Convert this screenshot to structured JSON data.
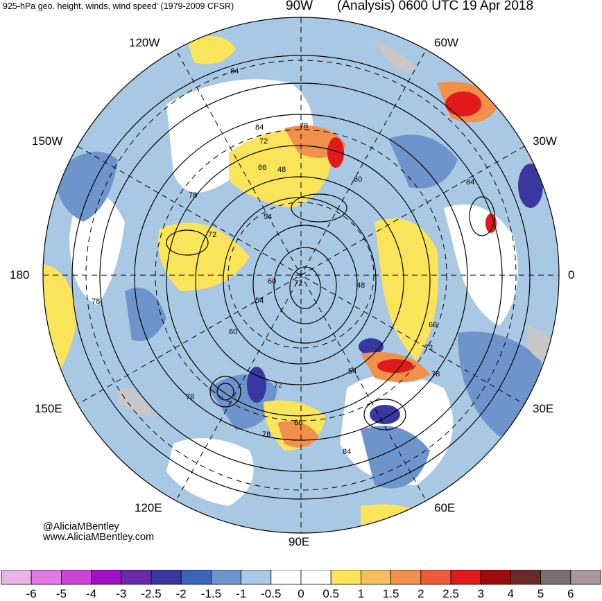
{
  "header": {
    "left_title": "925-hPa geo. height, winds, wind speed' (1979-2009 CFSR)",
    "top_lon": "90W",
    "right_title": "(Analysis) 0600 UTC 19 Apr 2018"
  },
  "longitude_labels": {
    "lon_120w": "120W",
    "lon_60w": "60W",
    "lon_150w": "150W",
    "lon_30w": "30W",
    "lon_180": "180",
    "lon_0": "0",
    "lon_150e": "150E",
    "lon_30e": "30E",
    "lon_120e": "120E",
    "lon_60e": "60E",
    "lon_90e": "90E"
  },
  "contour_labels": [
    "84",
    "84",
    "78",
    "72",
    "66",
    "48",
    "60",
    "54",
    "78",
    "72",
    "60",
    "72",
    "54",
    "60",
    "48",
    "84",
    "66",
    "72",
    "78",
    "54",
    "72",
    "78",
    "66",
    "78",
    "84",
    "78"
  ],
  "credits": {
    "handle": "@AliciaMBentley",
    "website": "www.AliciaMBentley.com"
  },
  "colorbar": {
    "ticks": [
      "-6",
      "-5",
      "-4",
      "-3",
      "-2.5",
      "-2",
      "-1.5",
      "-1",
      "-0.5",
      "0",
      "0.5",
      "1",
      "1.5",
      "2",
      "2.5",
      "3",
      "4",
      "5",
      "6"
    ],
    "colors": [
      "#e8b4e8",
      "#e07ae0",
      "#cc44d6",
      "#a010c8",
      "#6a2aa8",
      "#3838a0",
      "#3a64b8",
      "#6e94cc",
      "#a8c8e4",
      "#ffffff",
      "#ffffff",
      "#fae45a",
      "#f5be5a",
      "#f0904a",
      "#ee5a3a",
      "#e01a1a",
      "#a00a0a",
      "#6a2a2a",
      "#787070",
      "#a89898"
    ]
  }
}
